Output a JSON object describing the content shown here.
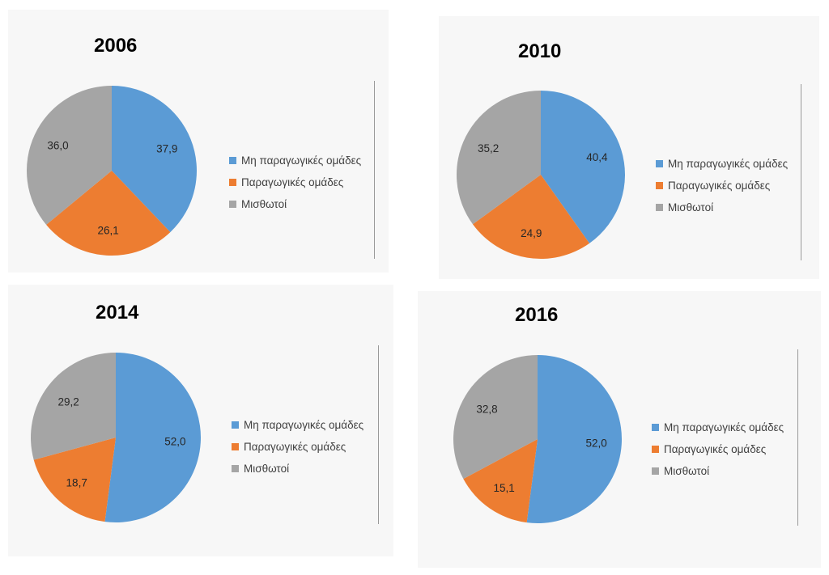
{
  "legend_labels": [
    "Μη παραγωγικές ομάδες",
    "Παραγωγικές ομάδες",
    "Μισθωτοί"
  ],
  "colors": {
    "non_productive": "#5b9bd5",
    "productive": "#ed7d31",
    "employees": "#a5a5a5"
  },
  "chart_data": [
    {
      "type": "pie",
      "title": "2006",
      "labels": [
        "Μη παραγωγικές ομάδες",
        "Παραγωγικές ομάδες",
        "Μισθωτοί"
      ],
      "values": [
        37.9,
        26.1,
        36.0
      ],
      "value_labels": [
        "37,9",
        "26,1",
        "36,0"
      ],
      "legend_position": "right"
    },
    {
      "type": "pie",
      "title": "2010",
      "labels": [
        "Μη παραγωγικές ομάδες",
        "Παραγωγικές ομάδες",
        "Μισθωτοί"
      ],
      "values": [
        40.4,
        24.9,
        35.2
      ],
      "value_labels": [
        "40,4",
        "24,9",
        "35,2"
      ],
      "legend_position": "right"
    },
    {
      "type": "pie",
      "title": "2014",
      "labels": [
        "Μη παραγωγικές ομάδες",
        "Παραγωγικές ομάδες",
        "Μισθωτοί"
      ],
      "values": [
        52.0,
        18.7,
        29.2
      ],
      "value_labels": [
        "52,0",
        "18,7",
        "29,2"
      ],
      "legend_position": "right"
    },
    {
      "type": "pie",
      "title": "2016",
      "labels": [
        "Μη παραγωγικές ομάδες",
        "Παραγωγικές ομάδες",
        "Μισθωτοί"
      ],
      "values": [
        52.0,
        15.1,
        32.8
      ],
      "value_labels": [
        "52,0",
        "15,1",
        "32,8"
      ],
      "legend_position": "right"
    }
  ]
}
